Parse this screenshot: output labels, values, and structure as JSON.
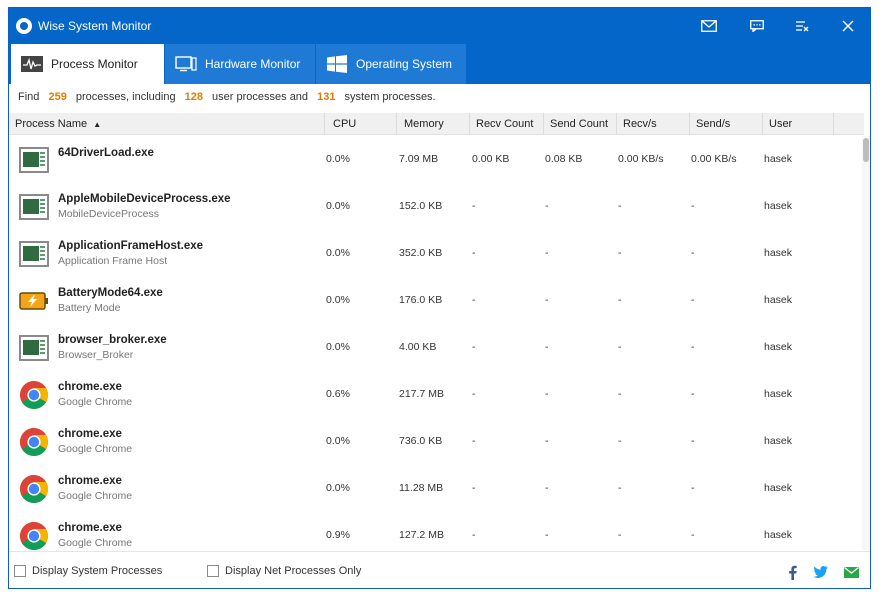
{
  "app": {
    "title": "Wise System Monitor"
  },
  "tabs": [
    {
      "label": "Process Monitor",
      "icon": "pulse-monitor-icon",
      "active": true
    },
    {
      "label": "Hardware Monitor",
      "icon": "monitor-icon",
      "active": false
    },
    {
      "label": "Operating System",
      "icon": "windows-logo-icon",
      "active": false
    }
  ],
  "summary": {
    "prefix": "Find",
    "total": "259",
    "text1": "processes, including",
    "user": "128",
    "text2": "user processes and",
    "system": "131",
    "text3": "system processes."
  },
  "columns": {
    "name": "Process Name",
    "cpu": "CPU",
    "memory": "Memory",
    "recv_count": "Recv Count",
    "send_count": "Send Count",
    "recv_rate": "Recv/s",
    "send_rate": "Send/s",
    "user": "User"
  },
  "processes": [
    {
      "name": "64DriverLoad.exe",
      "desc": "",
      "icon": "app-window",
      "cpu": "0.0%",
      "mem": "7.09 MB",
      "recv": "0.00 KB",
      "send": "0.08 KB",
      "recvs": "0.00 KB/s",
      "sends": "0.00 KB/s",
      "user": "hasek"
    },
    {
      "name": "AppleMobileDeviceProcess.exe",
      "desc": "MobileDeviceProcess",
      "icon": "app-window",
      "cpu": "0.0%",
      "mem": "152.0 KB",
      "recv": "-",
      "send": "-",
      "recvs": "-",
      "sends": "-",
      "user": "hasek"
    },
    {
      "name": "ApplicationFrameHost.exe",
      "desc": "Application Frame Host",
      "icon": "app-window",
      "cpu": "0.0%",
      "mem": "352.0 KB",
      "recv": "-",
      "send": "-",
      "recvs": "-",
      "sends": "-",
      "user": "hasek"
    },
    {
      "name": "BatteryMode64.exe",
      "desc": "Battery Mode",
      "icon": "battery",
      "cpu": "0.0%",
      "mem": "176.0 KB",
      "recv": "-",
      "send": "-",
      "recvs": "-",
      "sends": "-",
      "user": "hasek"
    },
    {
      "name": "browser_broker.exe",
      "desc": "Browser_Broker",
      "icon": "app-window",
      "cpu": "0.0%",
      "mem": "4.00 KB",
      "recv": "-",
      "send": "-",
      "recvs": "-",
      "sends": "-",
      "user": "hasek"
    },
    {
      "name": "chrome.exe",
      "desc": "Google Chrome",
      "icon": "chrome",
      "cpu": "0.6%",
      "mem": "217.7 MB",
      "recv": "-",
      "send": "-",
      "recvs": "-",
      "sends": "-",
      "user": "hasek"
    },
    {
      "name": "chrome.exe",
      "desc": "Google Chrome",
      "icon": "chrome",
      "cpu": "0.0%",
      "mem": "736.0 KB",
      "recv": "-",
      "send": "-",
      "recvs": "-",
      "sends": "-",
      "user": "hasek"
    },
    {
      "name": "chrome.exe",
      "desc": "Google Chrome",
      "icon": "chrome",
      "cpu": "0.0%",
      "mem": "11.28 MB",
      "recv": "-",
      "send": "-",
      "recvs": "-",
      "sends": "-",
      "user": "hasek"
    },
    {
      "name": "chrome.exe",
      "desc": "Google Chrome",
      "icon": "chrome",
      "cpu": "0.9%",
      "mem": "127.2 MB",
      "recv": "-",
      "send": "-",
      "recvs": "-",
      "sends": "-",
      "user": "hasek"
    }
  ],
  "footer": {
    "display_system": "Display System Processes",
    "display_net": "Display Net Processes Only"
  },
  "colors": {
    "brand": "#0466c8",
    "accent_number": "#e07b00",
    "facebook": "#3b5998",
    "twitter": "#1da1f2",
    "email": "#27a844"
  }
}
